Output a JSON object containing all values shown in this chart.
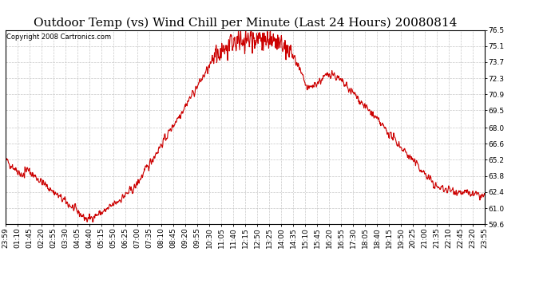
{
  "title": "Outdoor Temp (vs) Wind Chill per Minute (Last 24 Hours) 20080814",
  "copyright": "Copyright 2008 Cartronics.com",
  "line_color": "#cc0000",
  "background_color": "#ffffff",
  "grid_color": "#c8c8c8",
  "ylim": [
    59.6,
    76.5
  ],
  "yticks": [
    59.6,
    61.0,
    62.4,
    63.8,
    65.2,
    66.6,
    68.0,
    69.5,
    70.9,
    72.3,
    73.7,
    75.1,
    76.5
  ],
  "xtick_labels": [
    "23:59",
    "01:10",
    "01:45",
    "02:20",
    "02:55",
    "03:30",
    "04:05",
    "04:40",
    "05:15",
    "05:50",
    "06:25",
    "07:00",
    "07:35",
    "08:10",
    "08:45",
    "09:20",
    "09:55",
    "10:30",
    "11:05",
    "11:40",
    "12:15",
    "12:50",
    "13:25",
    "14:00",
    "14:35",
    "15:10",
    "15:45",
    "16:20",
    "16:55",
    "17:30",
    "18:05",
    "18:40",
    "19:15",
    "19:50",
    "20:25",
    "21:00",
    "21:35",
    "22:10",
    "22:45",
    "23:20",
    "23:55"
  ],
  "title_fontsize": 11,
  "copyright_fontsize": 6,
  "tick_fontsize": 6.5,
  "linewidth": 0.8
}
